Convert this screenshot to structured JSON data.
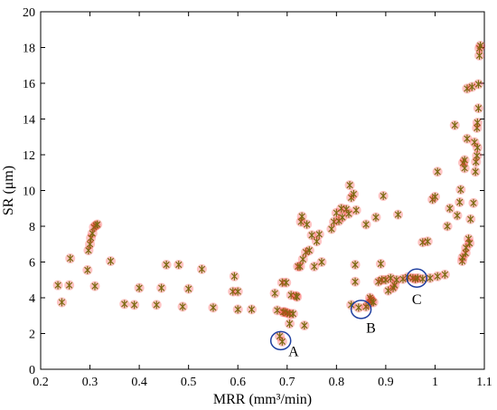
{
  "chart_data": {
    "type": "scatter",
    "xlabel": "MRR (mm³/min)",
    "ylabel": "SR (μm)",
    "xlim": [
      0.2,
      1.1
    ],
    "ylim": [
      0,
      20
    ],
    "xticks": [
      0.2,
      0.3,
      0.4,
      0.5,
      0.6,
      0.7,
      0.8,
      0.9,
      1,
      1.1
    ],
    "xtick_labels": [
      "0.2",
      "0.3",
      "0.4",
      "0.5",
      "0.6",
      "0.7",
      "0.8",
      "0.9",
      "1",
      "1.1"
    ],
    "yticks": [
      0,
      2,
      4,
      6,
      8,
      10,
      12,
      14,
      16,
      18,
      20
    ],
    "ytick_labels": [
      "0",
      "2",
      "4",
      "6",
      "8",
      "10",
      "12",
      "14",
      "16",
      "18",
      "20"
    ],
    "grid": false,
    "marker": "asterisk",
    "marker_color": "#7a6a10",
    "marker_glow_color": "#ff2a2a",
    "annotation_color": "#1f3fa0",
    "points": [
      [
        0.235,
        4.7
      ],
      [
        0.243,
        3.75
      ],
      [
        0.258,
        4.7
      ],
      [
        0.26,
        6.2
      ],
      [
        0.295,
        5.55
      ],
      [
        0.297,
        6.65
      ],
      [
        0.3,
        7.0
      ],
      [
        0.302,
        7.35
      ],
      [
        0.305,
        7.6
      ],
      [
        0.308,
        7.95
      ],
      [
        0.312,
        8.05
      ],
      [
        0.315,
        8.1
      ],
      [
        0.31,
        4.65
      ],
      [
        0.342,
        6.05
      ],
      [
        0.37,
        3.65
      ],
      [
        0.39,
        3.6
      ],
      [
        0.4,
        4.55
      ],
      [
        0.435,
        3.6
      ],
      [
        0.445,
        4.55
      ],
      [
        0.455,
        5.85
      ],
      [
        0.48,
        5.85
      ],
      [
        0.488,
        3.5
      ],
      [
        0.5,
        4.5
      ],
      [
        0.527,
        5.6
      ],
      [
        0.55,
        3.45
      ],
      [
        0.59,
        4.35
      ],
      [
        0.593,
        5.2
      ],
      [
        0.6,
        4.35
      ],
      [
        0.6,
        3.35
      ],
      [
        0.628,
        3.35
      ],
      [
        0.675,
        4.25
      ],
      [
        0.68,
        3.3
      ],
      [
        0.685,
        1.85
      ],
      [
        0.69,
        4.85
      ],
      [
        0.69,
        1.55
      ],
      [
        0.692,
        3.2
      ],
      [
        0.695,
        3.2
      ],
      [
        0.698,
        4.85
      ],
      [
        0.7,
        3.15
      ],
      [
        0.705,
        3.1
      ],
      [
        0.705,
        2.55
      ],
      [
        0.708,
        4.15
      ],
      [
        0.712,
        3.1
      ],
      [
        0.718,
        4.1
      ],
      [
        0.72,
        4.05
      ],
      [
        0.722,
        5.75
      ],
      [
        0.726,
        5.75
      ],
      [
        0.728,
        8.25
      ],
      [
        0.73,
        8.55
      ],
      [
        0.732,
        6.15
      ],
      [
        0.735,
        2.45
      ],
      [
        0.738,
        6.55
      ],
      [
        0.74,
        8.1
      ],
      [
        0.745,
        6.65
      ],
      [
        0.75,
        7.5
      ],
      [
        0.755,
        5.75
      ],
      [
        0.76,
        7.15
      ],
      [
        0.765,
        7.55
      ],
      [
        0.77,
        6.0
      ],
      [
        0.79,
        7.85
      ],
      [
        0.795,
        8.25
      ],
      [
        0.8,
        8.75
      ],
      [
        0.805,
        8.3
      ],
      [
        0.81,
        9.0
      ],
      [
        0.812,
        8.5
      ],
      [
        0.82,
        8.95
      ],
      [
        0.825,
        8.7
      ],
      [
        0.827,
        10.3
      ],
      [
        0.83,
        9.6
      ],
      [
        0.83,
        3.6
      ],
      [
        0.835,
        9.8
      ],
      [
        0.838,
        4.9
      ],
      [
        0.838,
        5.85
      ],
      [
        0.84,
        8.9
      ],
      [
        0.845,
        3.45
      ],
      [
        0.86,
        8.1
      ],
      [
        0.86,
        3.5
      ],
      [
        0.865,
        3.65
      ],
      [
        0.868,
        4.0
      ],
      [
        0.87,
        3.9
      ],
      [
        0.872,
        3.8
      ],
      [
        0.875,
        3.75
      ],
      [
        0.88,
        8.5
      ],
      [
        0.885,
        4.9
      ],
      [
        0.89,
        5.9
      ],
      [
        0.892,
        5.0
      ],
      [
        0.895,
        9.7
      ],
      [
        0.9,
        5.0
      ],
      [
        0.905,
        4.4
      ],
      [
        0.91,
        5.1
      ],
      [
        0.915,
        4.55
      ],
      [
        0.918,
        4.7
      ],
      [
        0.922,
        5.0
      ],
      [
        0.925,
        8.65
      ],
      [
        0.935,
        5.05
      ],
      [
        0.945,
        5.15
      ],
      [
        0.955,
        5.1
      ],
      [
        0.96,
        5.05
      ],
      [
        0.965,
        5.1
      ],
      [
        0.975,
        5.05
      ],
      [
        0.975,
        7.1
      ],
      [
        0.985,
        7.15
      ],
      [
        0.99,
        5.1
      ],
      [
        0.995,
        9.5
      ],
      [
        1.0,
        9.65
      ],
      [
        1.005,
        11.05
      ],
      [
        1.005,
        5.2
      ],
      [
        1.02,
        5.3
      ],
      [
        1.025,
        8.0
      ],
      [
        1.03,
        9.0
      ],
      [
        1.04,
        13.65
      ],
      [
        1.045,
        8.6
      ],
      [
        1.05,
        9.35
      ],
      [
        1.052,
        10.05
      ],
      [
        1.055,
        6.05
      ],
      [
        1.056,
        6.25
      ],
      [
        1.057,
        11.55
      ],
      [
        1.06,
        11.25
      ],
      [
        1.06,
        11.7
      ],
      [
        1.062,
        6.5
      ],
      [
        1.063,
        6.8
      ],
      [
        1.065,
        12.9
      ],
      [
        1.065,
        15.7
      ],
      [
        1.068,
        7.3
      ],
      [
        1.07,
        7.05
      ],
      [
        1.072,
        8.4
      ],
      [
        1.075,
        15.8
      ],
      [
        1.078,
        9.3
      ],
      [
        1.08,
        12.7
      ],
      [
        1.082,
        11.05
      ],
      [
        1.083,
        11.6
      ],
      [
        1.085,
        11.95
      ],
      [
        1.085,
        13.5
      ],
      [
        1.086,
        12.4
      ],
      [
        1.086,
        13.8
      ],
      [
        1.088,
        14.6
      ],
      [
        1.088,
        15.95
      ],
      [
        1.09,
        17.55
      ],
      [
        1.09,
        17.95
      ],
      [
        1.092,
        18.1
      ]
    ],
    "annotations": [
      {
        "label": "A",
        "circle": [
          0.687,
          1.6
        ],
        "text_at": [
          0.713,
          1.0
        ]
      },
      {
        "label": "B",
        "circle": [
          0.85,
          3.35
        ],
        "text_at": [
          0.87,
          2.3
        ]
      },
      {
        "label": "C",
        "circle": [
          0.963,
          5.1
        ],
        "text_at": [
          0.963,
          3.9
        ]
      }
    ]
  }
}
